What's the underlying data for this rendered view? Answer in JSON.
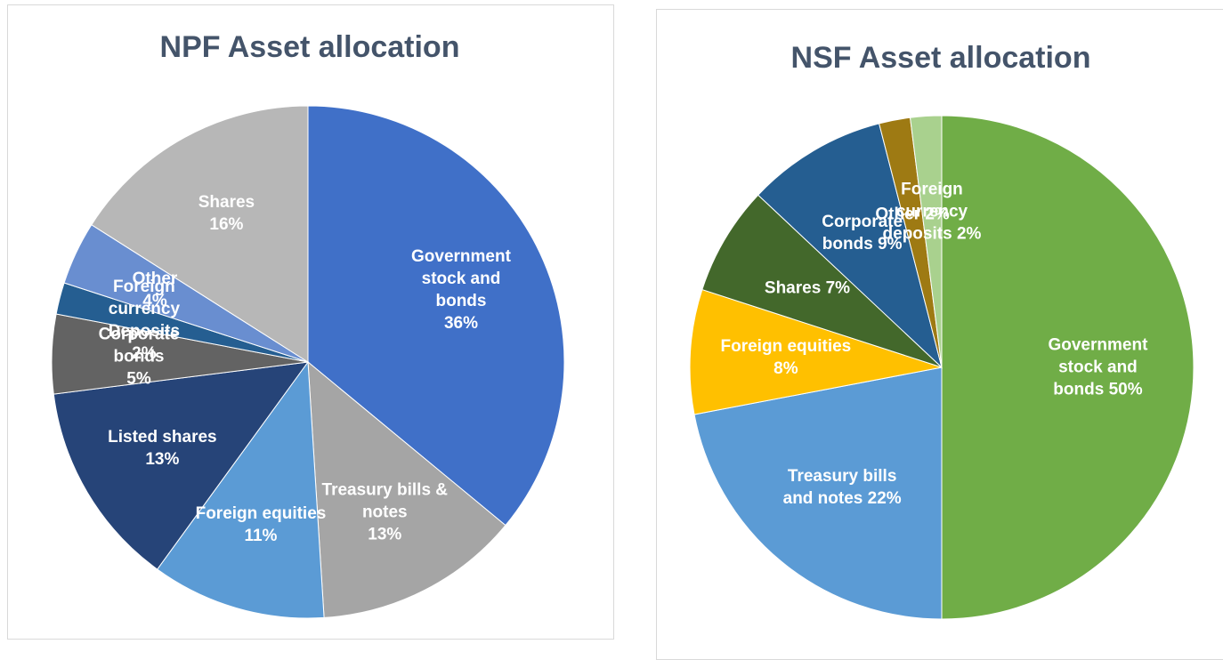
{
  "chart_data": [
    {
      "type": "pie",
      "title": "NPF Asset allocation",
      "categories": [
        "Government stock and bonds",
        "Treasury bills & notes",
        "Foreign equities",
        "Listed shares",
        "Corporate bonds",
        "Foreign currency Deposits",
        "Other",
        "Shares"
      ],
      "values": [
        36,
        13,
        11,
        13,
        5,
        2,
        4,
        16
      ],
      "value_labels": [
        "36%",
        "13%",
        "11%",
        "13%",
        "5%",
        "2%",
        "4%",
        "16%"
      ],
      "colors": [
        "#4070c8",
        "#a5a5a5",
        "#5b9bd5",
        "#264478",
        "#636363",
        "#255e91",
        "#698ed0",
        "#b7b7b7"
      ]
    },
    {
      "type": "pie",
      "title": "NSF Asset allocation",
      "categories": [
        "Government stock and bonds",
        "Treasury bills and notes",
        "Foreign equities",
        "Shares",
        "Corporate bonds",
        "Other",
        "Foreign currency deposits"
      ],
      "values": [
        50,
        22,
        8,
        7,
        9,
        2,
        2
      ],
      "value_labels": [
        "50%",
        "22%",
        "8%",
        "7%",
        "9%",
        "2%",
        "2%"
      ],
      "colors": [
        "#70ad47",
        "#5b9bd5",
        "#ffc000",
        "#43682b",
        "#255e91",
        "#9e7a13",
        "#a9d18e"
      ]
    }
  ]
}
